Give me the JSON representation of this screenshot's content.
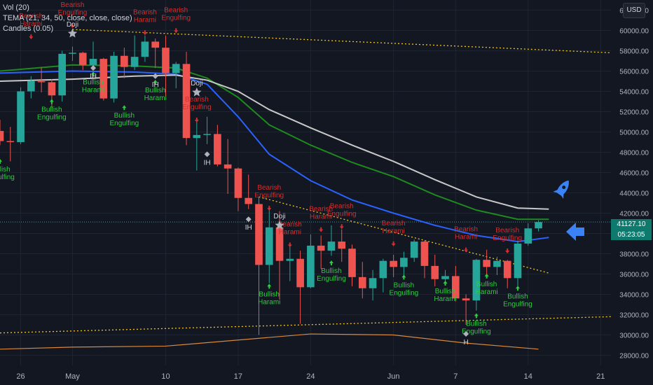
{
  "legend": {
    "vol": "Vol (20)",
    "tema": "TEMA (21, 34, 50, close, close, close)",
    "candles": "Candles (0.05)"
  },
  "currency": "USD",
  "last_price": {
    "value": "41127.10",
    "countdown": "05:23:05"
  },
  "colors": {
    "background": "#131722",
    "up": "#26a69a",
    "down": "#ef5350",
    "tema_fast": "#2962ff",
    "tema_mid": "#1e8a1e",
    "tema_slow": "#c8c8c8",
    "bearish_label": "#d32f2f",
    "bullish_label": "#2ecc40",
    "trendline": "#f5c518",
    "volume_ma": "#d9883a"
  },
  "icons": [
    "rocket-icon",
    "arrow-left-icon"
  ],
  "chart_data": {
    "type": "candlestick",
    "y_axis": {
      "min": 27000,
      "max": 63000,
      "ticks": [
        28000,
        30000,
        32000,
        34000,
        36000,
        38000,
        40000,
        42000,
        44000,
        46000,
        48000,
        50000,
        52000,
        54000,
        56000,
        58000,
        60000,
        62000
      ],
      "labels": [
        "28000.00",
        "30000.00",
        "32000.00",
        "34000.00",
        "36000.00",
        "38000.00",
        "40000.00",
        "42000.00",
        "44000.00",
        "46000.00",
        "48000.00",
        "50000.00",
        "52000.00",
        "54000.00",
        "56000.00",
        "58000.00",
        "60000.00",
        "62000.00"
      ]
    },
    "x_axis": {
      "start": "2021-04-24",
      "end": "2021-06-22",
      "ticks": [
        {
          "date": "2021-04-26",
          "label": "26"
        },
        {
          "date": "2021-05-01",
          "label": "May"
        },
        {
          "date": "2021-05-10",
          "label": "10"
        },
        {
          "date": "2021-05-17",
          "label": "17"
        },
        {
          "date": "2021-05-24",
          "label": "24"
        },
        {
          "date": "2021-06-01",
          "label": "Jun"
        },
        {
          "date": "2021-06-07",
          "label": "7"
        },
        {
          "date": "2021-06-14",
          "label": "14"
        },
        {
          "date": "2021-06-21",
          "label": "21"
        }
      ]
    },
    "candles": [
      {
        "date": "2021-04-24",
        "o": 50100,
        "h": 51200,
        "l": 48700,
        "c": 49100
      },
      {
        "date": "2021-04-25",
        "o": 49100,
        "h": 50500,
        "l": 47100,
        "c": 49000
      },
      {
        "date": "2021-04-26",
        "o": 49000,
        "h": 54400,
        "l": 48800,
        "c": 54000
      },
      {
        "date": "2021-04-27",
        "o": 54000,
        "h": 55500,
        "l": 53300,
        "c": 55000
      },
      {
        "date": "2021-04-28",
        "o": 55000,
        "h": 56400,
        "l": 53900,
        "c": 54900
      },
      {
        "date": "2021-04-29",
        "o": 54900,
        "h": 55200,
        "l": 52400,
        "c": 53600
      },
      {
        "date": "2021-04-30",
        "o": 53600,
        "h": 58000,
        "l": 53000,
        "c": 57700
      },
      {
        "date": "2021-05-01",
        "o": 57700,
        "h": 58400,
        "l": 57000,
        "c": 57800
      },
      {
        "date": "2021-05-02",
        "o": 57800,
        "h": 57900,
        "l": 56100,
        "c": 56600
      },
      {
        "date": "2021-05-03",
        "o": 56600,
        "h": 58900,
        "l": 56500,
        "c": 57200
      },
      {
        "date": "2021-05-04",
        "o": 57200,
        "h": 57300,
        "l": 53100,
        "c": 53300
      },
      {
        "date": "2021-05-05",
        "o": 53300,
        "h": 57900,
        "l": 52900,
        "c": 57500
      },
      {
        "date": "2021-05-06",
        "o": 57500,
        "h": 58300,
        "l": 55300,
        "c": 56400
      },
      {
        "date": "2021-05-07",
        "o": 56400,
        "h": 59500,
        "l": 56100,
        "c": 57400
      },
      {
        "date": "2021-05-08",
        "o": 57400,
        "h": 59500,
        "l": 56900,
        "c": 58900
      },
      {
        "date": "2021-05-09",
        "o": 58900,
        "h": 59200,
        "l": 56300,
        "c": 58300
      },
      {
        "date": "2021-05-10",
        "o": 58300,
        "h": 59500,
        "l": 53500,
        "c": 55800
      },
      {
        "date": "2021-05-11",
        "o": 55800,
        "h": 56900,
        "l": 54300,
        "c": 56700
      },
      {
        "date": "2021-05-12",
        "o": 56700,
        "h": 57900,
        "l": 48700,
        "c": 49400
      },
      {
        "date": "2021-05-13",
        "o": 49400,
        "h": 51300,
        "l": 46200,
        "c": 49700
      },
      {
        "date": "2021-05-14",
        "o": 49700,
        "h": 51500,
        "l": 48800,
        "c": 49800
      },
      {
        "date": "2021-05-15",
        "o": 49800,
        "h": 50700,
        "l": 46600,
        "c": 46800
      },
      {
        "date": "2021-05-16",
        "o": 46800,
        "h": 49300,
        "l": 43900,
        "c": 46400
      },
      {
        "date": "2021-05-17",
        "o": 46400,
        "h": 46500,
        "l": 42200,
        "c": 43500
      },
      {
        "date": "2021-05-18",
        "o": 43500,
        "h": 45800,
        "l": 42400,
        "c": 42900
      },
      {
        "date": "2021-05-19",
        "o": 42900,
        "h": 43600,
        "l": 30000,
        "c": 36900
      },
      {
        "date": "2021-05-20",
        "o": 36900,
        "h": 42500,
        "l": 35100,
        "c": 40600
      },
      {
        "date": "2021-05-21",
        "o": 40600,
        "h": 42200,
        "l": 33500,
        "c": 37300
      },
      {
        "date": "2021-05-22",
        "o": 37300,
        "h": 38800,
        "l": 35300,
        "c": 37500
      },
      {
        "date": "2021-05-23",
        "o": 37500,
        "h": 38300,
        "l": 31100,
        "c": 34700
      },
      {
        "date": "2021-05-24",
        "o": 34700,
        "h": 39900,
        "l": 34600,
        "c": 38800
      },
      {
        "date": "2021-05-25",
        "o": 38800,
        "h": 39800,
        "l": 36500,
        "c": 38300
      },
      {
        "date": "2021-05-26",
        "o": 38300,
        "h": 40800,
        "l": 37800,
        "c": 39200
      },
      {
        "date": "2021-05-27",
        "o": 39200,
        "h": 40400,
        "l": 37200,
        "c": 38500
      },
      {
        "date": "2021-05-28",
        "o": 38500,
        "h": 38900,
        "l": 34800,
        "c": 35700
      },
      {
        "date": "2021-05-29",
        "o": 35700,
        "h": 37200,
        "l": 33600,
        "c": 34600
      },
      {
        "date": "2021-05-30",
        "o": 34600,
        "h": 36400,
        "l": 33400,
        "c": 35600
      },
      {
        "date": "2021-05-31",
        "o": 35600,
        "h": 37500,
        "l": 34200,
        "c": 37300
      },
      {
        "date": "2021-06-01",
        "o": 37300,
        "h": 37900,
        "l": 35700,
        "c": 36700
      },
      {
        "date": "2021-06-02",
        "o": 36700,
        "h": 38200,
        "l": 35900,
        "c": 37600
      },
      {
        "date": "2021-06-03",
        "o": 37600,
        "h": 39400,
        "l": 37200,
        "c": 39200
      },
      {
        "date": "2021-06-04",
        "o": 39200,
        "h": 39300,
        "l": 35600,
        "c": 36800
      },
      {
        "date": "2021-06-05",
        "o": 36800,
        "h": 37900,
        "l": 34800,
        "c": 35500
      },
      {
        "date": "2021-06-06",
        "o": 35500,
        "h": 36400,
        "l": 35300,
        "c": 35800
      },
      {
        "date": "2021-06-07",
        "o": 35800,
        "h": 36800,
        "l": 33300,
        "c": 33600
      },
      {
        "date": "2021-06-08",
        "o": 33600,
        "h": 34000,
        "l": 31000,
        "c": 33400
      },
      {
        "date": "2021-06-09",
        "o": 33400,
        "h": 37500,
        "l": 32400,
        "c": 37400
      },
      {
        "date": "2021-06-10",
        "o": 37400,
        "h": 38400,
        "l": 35800,
        "c": 36700
      },
      {
        "date": "2021-06-11",
        "o": 36700,
        "h": 37700,
        "l": 35900,
        "c": 37300
      },
      {
        "date": "2021-06-12",
        "o": 37300,
        "h": 37400,
        "l": 34600,
        "c": 35600
      },
      {
        "date": "2021-06-13",
        "o": 35600,
        "h": 39300,
        "l": 34800,
        "c": 39000
      },
      {
        "date": "2021-06-14",
        "o": 39000,
        "h": 41000,
        "l": 38800,
        "c": 40500
      },
      {
        "date": "2021-06-15",
        "o": 40500,
        "h": 41300,
        "l": 40200,
        "c": 41127
      }
    ],
    "tema_lines": [
      {
        "color": "#2962ff",
        "points": [
          [
            "2021-04-24",
            55800
          ],
          [
            "2021-05-01",
            56000
          ],
          [
            "2021-05-07",
            55900
          ],
          [
            "2021-05-11",
            55700
          ],
          [
            "2021-05-14",
            54700
          ],
          [
            "2021-05-17",
            51500
          ],
          [
            "2021-05-20",
            47800
          ],
          [
            "2021-05-24",
            45200
          ],
          [
            "2021-05-28",
            43300
          ],
          [
            "2021-06-01",
            42000
          ],
          [
            "2021-06-05",
            40800
          ],
          [
            "2021-06-09",
            39800
          ],
          [
            "2021-06-13",
            39200
          ],
          [
            "2021-06-16",
            39600
          ]
        ]
      },
      {
        "color": "#1e8a1e",
        "points": [
          [
            "2021-04-24",
            56000
          ],
          [
            "2021-05-01",
            56600
          ],
          [
            "2021-05-07",
            56500
          ],
          [
            "2021-05-11",
            56300
          ],
          [
            "2021-05-14",
            55300
          ],
          [
            "2021-05-17",
            53400
          ],
          [
            "2021-05-20",
            50700
          ],
          [
            "2021-05-24",
            48700
          ],
          [
            "2021-05-28",
            47000
          ],
          [
            "2021-06-01",
            45600
          ],
          [
            "2021-06-05",
            43800
          ],
          [
            "2021-06-09",
            42300
          ],
          [
            "2021-06-13",
            41400
          ],
          [
            "2021-06-16",
            41400
          ]
        ]
      },
      {
        "color": "#c8c8c8",
        "points": [
          [
            "2021-04-24",
            55000
          ],
          [
            "2021-05-01",
            55200
          ],
          [
            "2021-05-07",
            55500
          ],
          [
            "2021-05-11",
            55600
          ],
          [
            "2021-05-14",
            55100
          ],
          [
            "2021-05-17",
            54000
          ],
          [
            "2021-05-20",
            52200
          ],
          [
            "2021-05-24",
            50400
          ],
          [
            "2021-05-28",
            48700
          ],
          [
            "2021-06-01",
            47100
          ],
          [
            "2021-06-05",
            45300
          ],
          [
            "2021-06-09",
            43600
          ],
          [
            "2021-06-13",
            42500
          ],
          [
            "2021-06-16",
            42400
          ]
        ]
      }
    ],
    "trendlines": [
      {
        "from": [
          "2021-05-01",
          60100
        ],
        "to": [
          "2021-06-22",
          57800
        ]
      },
      {
        "from": [
          "2021-05-19",
          43600
        ],
        "to": [
          "2021-06-16",
          36100
        ]
      },
      {
        "from": [
          "2021-04-24",
          30200
        ],
        "to": [
          "2021-06-22",
          31800
        ]
      }
    ],
    "pattern_labels": [
      {
        "date": "2021-04-24",
        "y": 46100,
        "text": [
          "Bullish",
          "Engulfing"
        ],
        "kind": "bull"
      },
      {
        "date": "2021-04-27",
        "y": 61200,
        "text": [
          "Bearish",
          "Harami"
        ],
        "kind": "bear"
      },
      {
        "date": "2021-04-29",
        "y": 52000,
        "text": [
          "Bullish",
          "Engulfing"
        ],
        "kind": "bull"
      },
      {
        "date": "2021-05-01",
        "y": 62300,
        "text": [
          "Bearish",
          "Engulfing"
        ],
        "kind": "bear"
      },
      {
        "date": "2021-05-03",
        "y": 54700,
        "text": [
          "Bullish",
          "Harami"
        ],
        "kind": "bull"
      },
      {
        "date": "2021-05-06",
        "y": 51400,
        "text": [
          "Bullish",
          "Engulfing"
        ],
        "kind": "bull"
      },
      {
        "date": "2021-05-08",
        "y": 61600,
        "text": [
          "Bearish",
          "Harami"
        ],
        "kind": "bear"
      },
      {
        "date": "2021-05-09",
        "y": 53900,
        "text": [
          "Bullish",
          "Harami"
        ],
        "kind": "bull"
      },
      {
        "date": "2021-05-11",
        "y": 61800,
        "text": [
          "Bearish",
          "Engulfing"
        ],
        "kind": "bear"
      },
      {
        "date": "2021-05-13",
        "y": 53000,
        "text": [
          "Bearish",
          "Engulfing"
        ],
        "kind": "bear"
      },
      {
        "date": "2021-05-20",
        "y": 44300,
        "text": [
          "Bearish",
          "Engulfing"
        ],
        "kind": "bear"
      },
      {
        "date": "2021-05-20",
        "y": 33800,
        "text": [
          "Bullish",
          "Harami"
        ],
        "kind": "bull"
      },
      {
        "date": "2021-05-22",
        "y": 40700,
        "text": [
          "Bearish",
          "Harami"
        ],
        "kind": "bear"
      },
      {
        "date": "2021-05-25",
        "y": 42200,
        "text": [
          "Bearish",
          "Harami"
        ],
        "kind": "bear"
      },
      {
        "date": "2021-05-27",
        "y": 42500,
        "text": [
          "Bearish",
          "Engulfing"
        ],
        "kind": "bear"
      },
      {
        "date": "2021-05-26",
        "y": 36100,
        "text": [
          "Bullish",
          "Engulfing"
        ],
        "kind": "bull"
      },
      {
        "date": "2021-06-01",
        "y": 40800,
        "text": [
          "Bearish",
          "Harami"
        ],
        "kind": "bear"
      },
      {
        "date": "2021-06-02",
        "y": 34700,
        "text": [
          "Bullish",
          "Engulfing"
        ],
        "kind": "bull"
      },
      {
        "date": "2021-06-06",
        "y": 34100,
        "text": [
          "Bullish",
          "Harami"
        ],
        "kind": "bull"
      },
      {
        "date": "2021-06-08",
        "y": 40200,
        "text": [
          "Bearish",
          "Harami"
        ],
        "kind": "bear"
      },
      {
        "date": "2021-06-09",
        "y": 30900,
        "text": [
          "Bullish",
          "Engulfing"
        ],
        "kind": "bull"
      },
      {
        "date": "2021-06-10",
        "y": 34800,
        "text": [
          "Bullish",
          "Harami"
        ],
        "kind": "bull"
      },
      {
        "date": "2021-06-12",
        "y": 40100,
        "text": [
          "Bearish",
          "Engulfing"
        ],
        "kind": "bear"
      },
      {
        "date": "2021-06-13",
        "y": 33600,
        "text": [
          "Bullish",
          "Engulfing"
        ],
        "kind": "bull"
      }
    ],
    "doji_marks": [
      {
        "date": "2021-05-01",
        "y": 59700,
        "text": "Doji"
      },
      {
        "date": "2021-05-13",
        "y": 53900,
        "text": "Doji"
      },
      {
        "date": "2021-05-21",
        "y": 40800,
        "text": "Doji"
      }
    ],
    "ih_marks": [
      {
        "date": "2021-05-03",
        "y": 56300,
        "text": "IH"
      },
      {
        "date": "2021-05-09",
        "y": 55500,
        "text": "IH"
      },
      {
        "date": "2021-05-14",
        "y": 47800,
        "text": "IH"
      },
      {
        "date": "2021-05-18",
        "y": 41400,
        "text": "IH"
      },
      {
        "date": "2021-06-08",
        "y": 30100,
        "text": "H"
      }
    ],
    "volume_ma": [
      [
        "2021-04-24",
        28600
      ],
      [
        "2021-05-01",
        28800
      ],
      [
        "2021-05-10",
        28900
      ],
      [
        "2021-05-17",
        29500
      ],
      [
        "2021-05-24",
        30100
      ],
      [
        "2021-06-01",
        30000
      ],
      [
        "2021-06-08",
        29200
      ],
      [
        "2021-06-15",
        28600
      ]
    ]
  }
}
